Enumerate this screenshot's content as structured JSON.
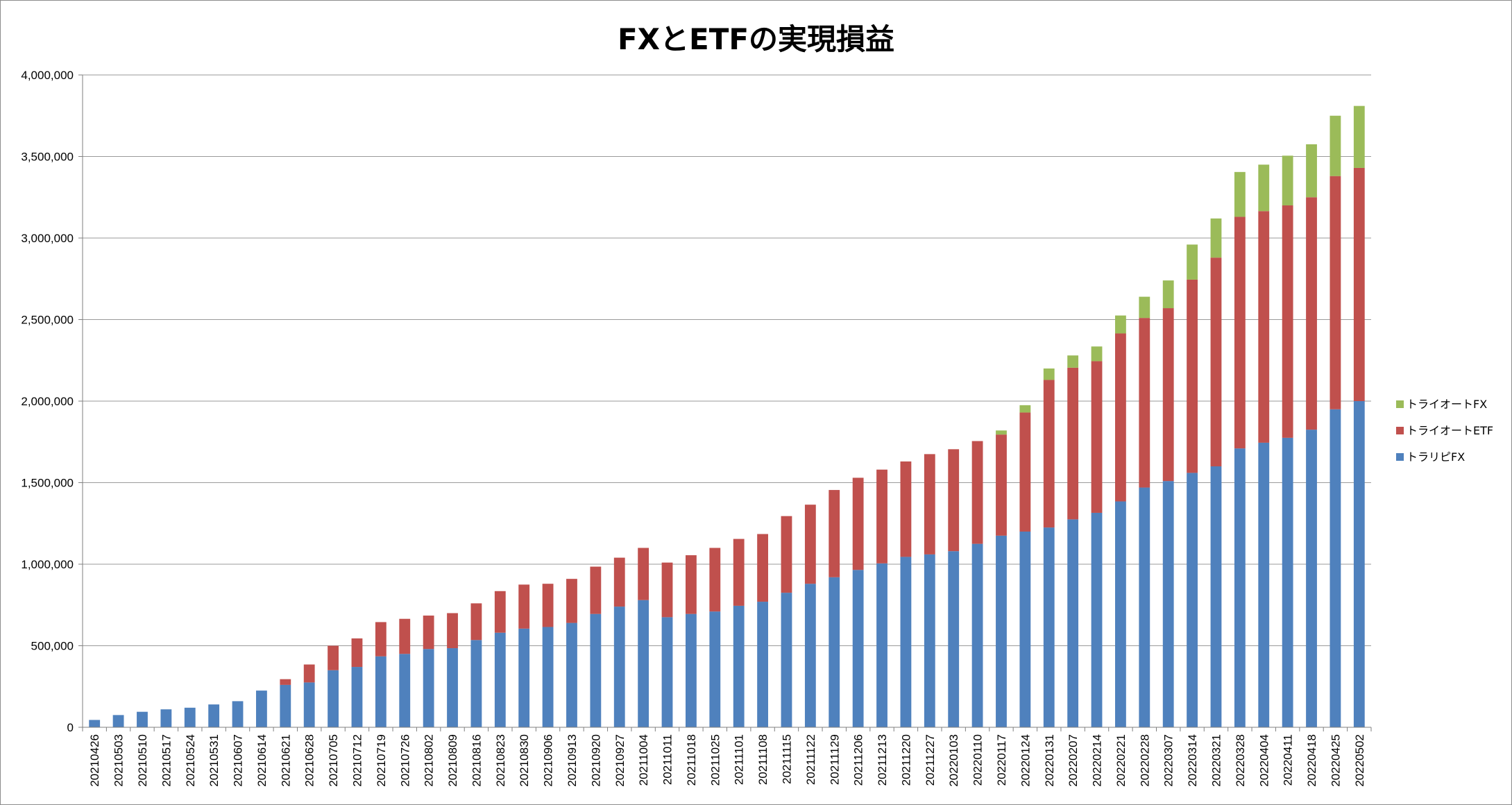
{
  "chart_data": {
    "type": "bar",
    "stacked": true,
    "title": "FXとETFの実現損益",
    "xlabel": "",
    "ylabel": "",
    "ylim": [
      0,
      4000000
    ],
    "y_ticks": [
      "0",
      "500,000",
      "1,000,000",
      "1,500,000",
      "2,000,000",
      "2,500,000",
      "3,000,000",
      "3,500,000",
      "4,000,000"
    ],
    "grid": true,
    "legend_position": "right",
    "categories": [
      "20210426",
      "20210503",
      "20210510",
      "20210517",
      "20210524",
      "20210531",
      "20210607",
      "20210614",
      "20210621",
      "20210628",
      "20210705",
      "20210712",
      "20210719",
      "20210726",
      "20210802",
      "20210809",
      "20210816",
      "20210823",
      "20210830",
      "20210906",
      "20210913",
      "20210920",
      "20210927",
      "20211004",
      "20211011",
      "20211018",
      "20211025",
      "20211101",
      "20211108",
      "20211115",
      "20211122",
      "20211129",
      "20211206",
      "20211213",
      "20211220",
      "20211227",
      "20220103",
      "20220110",
      "20220117",
      "20220124",
      "20220131",
      "20220207",
      "20220214",
      "20220221",
      "20220228",
      "20220307",
      "20220314",
      "20220321",
      "20220328",
      "20220404",
      "20220411",
      "20220418",
      "20220425",
      "20220502"
    ],
    "series": [
      {
        "name": "トラリピFX",
        "color": "#4f81bd",
        "values": [
          45000,
          75000,
          95000,
          110000,
          120000,
          140000,
          160000,
          225000,
          260000,
          275000,
          350000,
          370000,
          435000,
          450000,
          480000,
          485000,
          535000,
          580000,
          605000,
          615000,
          640000,
          695000,
          740000,
          780000,
          675000,
          695000,
          710000,
          745000,
          770000,
          825000,
          880000,
          920000,
          965000,
          1005000,
          1045000,
          1060000,
          1080000,
          1125000,
          1175000,
          1200000,
          1225000,
          1275000,
          1315000,
          1385000,
          1470000,
          1510000,
          1560000,
          1600000,
          1710000,
          1745000,
          1775000,
          1825000,
          1950000,
          2000000
        ]
      },
      {
        "name": "トライオートETF",
        "color": "#c0504d",
        "values": [
          0,
          0,
          0,
          0,
          0,
          0,
          0,
          0,
          35000,
          110000,
          150000,
          175000,
          210000,
          215000,
          205000,
          215000,
          225000,
          255000,
          270000,
          265000,
          270000,
          290000,
          300000,
          320000,
          335000,
          360000,
          390000,
          410000,
          415000,
          470000,
          485000,
          535000,
          565000,
          575000,
          585000,
          615000,
          625000,
          630000,
          620000,
          730000,
          905000,
          930000,
          930000,
          1030000,
          1040000,
          1060000,
          1185000,
          1280000,
          1420000,
          1420000,
          1425000,
          1425000,
          1430000,
          1430000
        ]
      },
      {
        "name": "トライオートFX",
        "color": "#9bbb59",
        "values": [
          0,
          0,
          0,
          0,
          0,
          0,
          0,
          0,
          0,
          0,
          0,
          0,
          0,
          0,
          0,
          0,
          0,
          0,
          0,
          0,
          0,
          0,
          0,
          0,
          0,
          0,
          0,
          0,
          0,
          0,
          0,
          0,
          0,
          0,
          0,
          0,
          0,
          0,
          25000,
          45000,
          70000,
          75000,
          90000,
          110000,
          130000,
          170000,
          215000,
          240000,
          275000,
          285000,
          305000,
          325000,
          370000,
          380000
        ]
      }
    ]
  }
}
